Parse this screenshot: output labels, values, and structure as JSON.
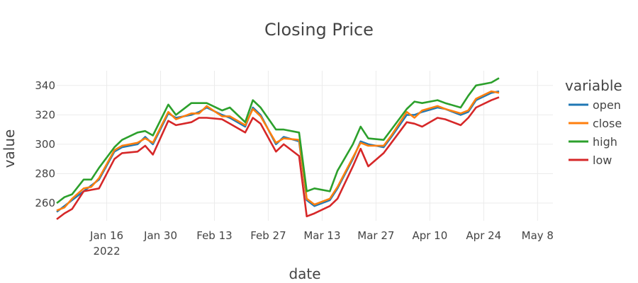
{
  "chart_data": {
    "type": "line",
    "title": "Closing Price",
    "xlabel": "date",
    "ylabel": "value",
    "xlim": [
      "2022-01-03",
      "2022-05-12"
    ],
    "ylim": [
      248,
      350
    ],
    "grid": true,
    "legend": {
      "title": "variable",
      "placement": "right"
    },
    "x_ticks": [
      {
        "date": "2022-01-16",
        "label": "Jan 16",
        "sublabel": "2022"
      },
      {
        "date": "2022-01-30",
        "label": "Jan 30"
      },
      {
        "date": "2022-02-13",
        "label": "Feb 13"
      },
      {
        "date": "2022-02-27",
        "label": "Feb 27"
      },
      {
        "date": "2022-03-13",
        "label": "Mar 13"
      },
      {
        "date": "2022-03-27",
        "label": "Mar 27"
      },
      {
        "date": "2022-04-10",
        "label": "Apr 10"
      },
      {
        "date": "2022-04-24",
        "label": "Apr 24"
      },
      {
        "date": "2022-05-08",
        "label": "May 8"
      }
    ],
    "y_ticks": [
      260,
      280,
      300,
      320,
      340
    ],
    "x": [
      "2022-01-03",
      "2022-01-05",
      "2022-01-07",
      "2022-01-10",
      "2022-01-12",
      "2022-01-14",
      "2022-01-18",
      "2022-01-20",
      "2022-01-24",
      "2022-01-26",
      "2022-01-28",
      "2022-02-01",
      "2022-02-03",
      "2022-02-07",
      "2022-02-09",
      "2022-02-11",
      "2022-02-15",
      "2022-02-17",
      "2022-02-21",
      "2022-02-23",
      "2022-02-25",
      "2022-03-01",
      "2022-03-03",
      "2022-03-07",
      "2022-03-09",
      "2022-03-11",
      "2022-03-15",
      "2022-03-17",
      "2022-03-21",
      "2022-03-23",
      "2022-03-25",
      "2022-03-29",
      "2022-03-31",
      "2022-04-04",
      "2022-04-06",
      "2022-04-08",
      "2022-04-12",
      "2022-04-14",
      "2022-04-18",
      "2022-04-20",
      "2022-04-22",
      "2022-04-26",
      "2022-04-28"
    ],
    "series": [
      {
        "name": "open",
        "color": "#1f77b4",
        "values": [
          254,
          258,
          262,
          268,
          272,
          276,
          295,
          298,
          300,
          305,
          300,
          321,
          318,
          320,
          322,
          325,
          320,
          318,
          312,
          325,
          320,
          300,
          305,
          302,
          262,
          258,
          262,
          270,
          290,
          302,
          300,
          298,
          305,
          320,
          320,
          322,
          325,
          324,
          320,
          322,
          330,
          335,
          336
        ]
      },
      {
        "name": "close",
        "color": "#ff7f0e",
        "values": [
          255,
          257,
          263,
          270,
          271,
          277,
          296,
          299,
          301,
          304,
          301,
          322,
          317,
          321,
          321,
          326,
          319,
          319,
          313,
          324,
          319,
          301,
          304,
          303,
          263,
          259,
          263,
          271,
          291,
          301,
          299,
          299,
          306,
          322,
          318,
          323,
          326,
          324,
          321,
          323,
          331,
          336,
          335
        ]
      },
      {
        "name": "high",
        "color": "#2ca02c",
        "values": [
          260,
          264,
          266,
          276,
          276,
          284,
          298,
          303,
          308,
          309,
          306,
          327,
          320,
          328,
          328,
          328,
          323,
          325,
          315,
          330,
          325,
          310,
          310,
          308,
          268,
          270,
          268,
          282,
          300,
          312,
          304,
          303,
          310,
          324,
          329,
          328,
          330,
          328,
          325,
          333,
          340,
          342,
          345
        ]
      },
      {
        "name": "low",
        "color": "#d62728",
        "values": [
          249,
          253,
          256,
          268,
          269,
          270,
          290,
          294,
          295,
          299,
          293,
          316,
          313,
          315,
          318,
          318,
          317,
          314,
          308,
          318,
          314,
          295,
          300,
          292,
          251,
          253,
          258,
          263,
          285,
          297,
          285,
          294,
          301,
          315,
          314,
          312,
          318,
          317,
          313,
          318,
          325,
          330,
          332
        ]
      }
    ]
  }
}
